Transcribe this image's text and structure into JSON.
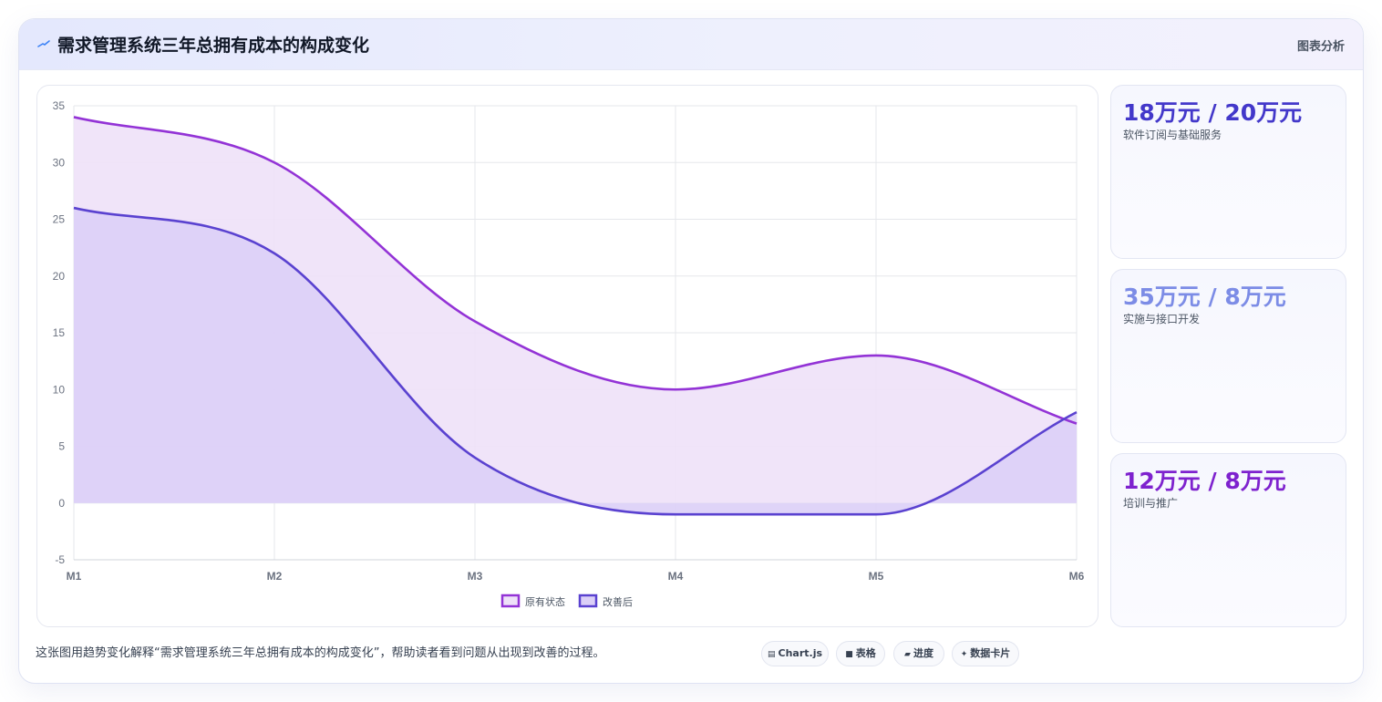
{
  "header": {
    "title": "需求管理系统三年总拥有成本的构成变化",
    "tag": "图表分析"
  },
  "chart_data": {
    "type": "area",
    "x": [
      "M1",
      "M2",
      "M3",
      "M4",
      "M5",
      "M6"
    ],
    "series": [
      {
        "name": "原有状态",
        "values": [
          34,
          30,
          16,
          10,
          13,
          7
        ],
        "color": "#9333d6",
        "fill": "#eee1f8"
      },
      {
        "name": "改善后",
        "values": [
          26,
          22,
          4,
          -1,
          -1,
          8
        ],
        "color": "#5a42d0",
        "fill": "#dbcff7"
      }
    ],
    "ylim": [
      -5,
      35
    ],
    "yticks": [
      -5,
      0,
      5,
      10,
      15,
      20,
      25,
      30,
      35
    ],
    "grid": true,
    "legend": "bottom-center",
    "title": "",
    "xlabel": "",
    "ylabel": ""
  },
  "cards": [
    {
      "value": "18万元 / 20万元",
      "label": "软件订阅与基础服务",
      "color": "#4338ca"
    },
    {
      "value": "35万元 / 8万元",
      "label": "实施与接口开发",
      "color": "#7c8ce6"
    },
    {
      "value": "12万元 / 8万元",
      "label": "培训与推广",
      "color": "#7e22ce"
    }
  ],
  "footer": {
    "text": "这张图用趋势变化解释“需求管理系统三年总拥有成本的构成变化”，帮助读者看到问题从出现到改善的过程。",
    "pills": [
      {
        "icon": "▤",
        "label": "Chart.js"
      },
      {
        "icon": "■",
        "label": "表格"
      },
      {
        "icon": "▰",
        "label": "进度"
      },
      {
        "icon": "✦",
        "label": "数据卡片"
      }
    ]
  }
}
